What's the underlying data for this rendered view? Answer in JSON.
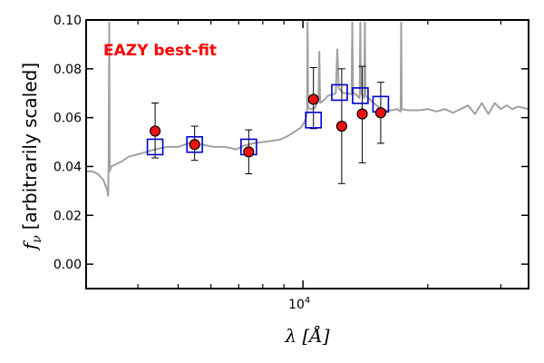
{
  "chart_data": {
    "type": "scatter",
    "title": "",
    "xlabel": "λ [Å]",
    "ylabel_symbol": "f",
    "ylabel_subscript": "ν",
    "ylabel_text": "[arbitrarily scaled]",
    "x_scale": "log",
    "xlim": [
      3000,
      35000
    ],
    "ylim": [
      -0.01,
      0.1
    ],
    "y_ticks": [
      0.0,
      0.02,
      0.04,
      0.06,
      0.08,
      0.1
    ],
    "y_tick_labels": [
      "0.00",
      "0.02",
      "0.04",
      "0.06",
      "0.08",
      "0.10"
    ],
    "x_major_ticks": [
      10000
    ],
    "x_major_tick_base": "10",
    "x_major_tick_exp": "4",
    "x_minor_ticks": [
      4000,
      5000,
      6000,
      7000,
      8000,
      9000,
      20000,
      30000
    ],
    "annotation": "EAZY best-fit",
    "annotation_color": "#ff0000",
    "observed": [
      {
        "x": 4400,
        "y": 0.0545,
        "err_lo": 0.011,
        "err_hi": 0.0115
      },
      {
        "x": 5480,
        "y": 0.049,
        "err_lo": 0.0065,
        "err_hi": 0.0075
      },
      {
        "x": 7400,
        "y": 0.046,
        "err_lo": 0.009,
        "err_hi": 0.009
      },
      {
        "x": 10600,
        "y": 0.0675,
        "err_lo": 0.012,
        "err_hi": 0.013
      },
      {
        "x": 12400,
        "y": 0.0565,
        "err_lo": 0.0235,
        "err_hi": 0.0235
      },
      {
        "x": 13900,
        "y": 0.0615,
        "err_lo": 0.02,
        "err_hi": 0.0195
      },
      {
        "x": 15400,
        "y": 0.062,
        "err_lo": 0.0125,
        "err_hi": 0.0125
      }
    ],
    "model_photometry": [
      {
        "x": 4400,
        "y": 0.048
      },
      {
        "x": 5480,
        "y": 0.049
      },
      {
        "x": 7400,
        "y": 0.048
      },
      {
        "x": 10600,
        "y": 0.059
      },
      {
        "x": 12250,
        "y": 0.0703
      },
      {
        "x": 13750,
        "y": 0.069
      },
      {
        "x": 15400,
        "y": 0.0655
      }
    ],
    "template": [
      [
        3000,
        0.038
      ],
      [
        3100,
        0.038
      ],
      [
        3200,
        0.037
      ],
      [
        3300,
        0.0345
      ],
      [
        3370,
        0.0305
      ],
      [
        3390,
        0.028
      ],
      [
        3400,
        0.044
      ],
      [
        3410,
        0.099
      ],
      [
        3420,
        0.038
      ],
      [
        3450,
        0.04
      ],
      [
        3550,
        0.041
      ],
      [
        3650,
        0.042
      ],
      [
        3800,
        0.044
      ],
      [
        4000,
        0.045
      ],
      [
        4200,
        0.046
      ],
      [
        4400,
        0.047
      ],
      [
        4700,
        0.048
      ],
      [
        5000,
        0.048
      ],
      [
        5300,
        0.0495
      ],
      [
        5700,
        0.049
      ],
      [
        6100,
        0.048
      ],
      [
        6500,
        0.048
      ],
      [
        6900,
        0.047
      ],
      [
        7200,
        0.0485
      ],
      [
        7600,
        0.0495
      ],
      [
        8000,
        0.05
      ],
      [
        8400,
        0.0505
      ],
      [
        8800,
        0.051
      ],
      [
        9200,
        0.0525
      ],
      [
        9600,
        0.0545
      ],
      [
        9900,
        0.056
      ],
      [
        10150,
        0.059
      ],
      [
        10230,
        0.062
      ],
      [
        10260,
        0.099
      ],
      [
        10290,
        0.064
      ],
      [
        10450,
        0.0635
      ],
      [
        10700,
        0.064
      ],
      [
        10900,
        0.0675
      ],
      [
        10950,
        0.087
      ],
      [
        11000,
        0.066
      ],
      [
        11200,
        0.067
      ],
      [
        11500,
        0.069
      ],
      [
        11800,
        0.0695
      ],
      [
        12000,
        0.07
      ],
      [
        12100,
        0.088
      ],
      [
        12200,
        0.072
      ],
      [
        12500,
        0.07
      ],
      [
        12800,
        0.07
      ],
      [
        13100,
        0.0695
      ],
      [
        13150,
        0.099
      ],
      [
        13200,
        0.0705
      ],
      [
        13500,
        0.069
      ],
      [
        13700,
        0.068
      ],
      [
        13750,
        0.099
      ],
      [
        13800,
        0.07
      ],
      [
        14050,
        0.068
      ],
      [
        14100,
        0.099
      ],
      [
        14150,
        0.069
      ],
      [
        14400,
        0.068
      ],
      [
        14800,
        0.066
      ],
      [
        15300,
        0.064
      ],
      [
        15800,
        0.063
      ],
      [
        16300,
        0.063
      ],
      [
        16900,
        0.0635
      ],
      [
        17200,
        0.0625
      ],
      [
        17250,
        0.099
      ],
      [
        17300,
        0.0635
      ],
      [
        18000,
        0.063
      ],
      [
        19000,
        0.063
      ],
      [
        20000,
        0.0635
      ],
      [
        21000,
        0.0625
      ],
      [
        22000,
        0.0635
      ],
      [
        23000,
        0.062
      ],
      [
        24000,
        0.0635
      ],
      [
        25000,
        0.065
      ],
      [
        26000,
        0.0615
      ],
      [
        27000,
        0.066
      ],
      [
        28000,
        0.0615
      ],
      [
        29000,
        0.066
      ],
      [
        30000,
        0.0635
      ],
      [
        31000,
        0.065
      ],
      [
        32000,
        0.0635
      ],
      [
        33000,
        0.0645
      ],
      [
        34000,
        0.064
      ],
      [
        35000,
        0.0635
      ]
    ],
    "colors": {
      "template": "#a0a0a0",
      "observed_fill": "#ee1111",
      "observed_edge": "#000000",
      "model_edge": "#0000cc",
      "error_bar": "#000000",
      "axes": "#000000"
    },
    "grid": false,
    "legend": "none"
  }
}
